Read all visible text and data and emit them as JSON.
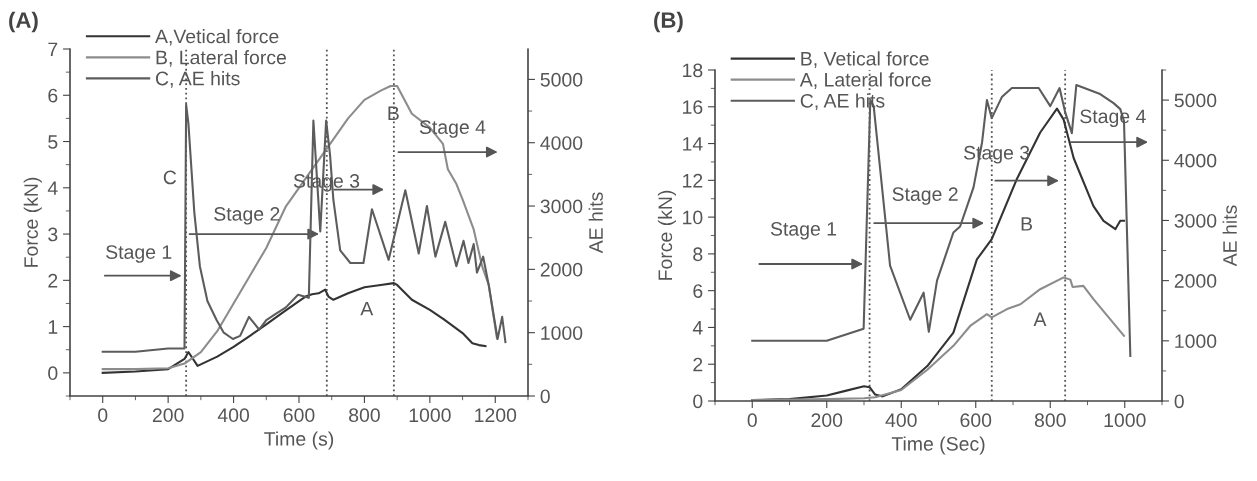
{
  "chart_data": [
    {
      "type": "line",
      "title": "(A)",
      "xlabel": "Time (s)",
      "ylabel": "Force (kN)",
      "y2label": "AE hits",
      "xlim": [
        -100,
        1300
      ],
      "xticks": [
        0,
        200,
        400,
        600,
        800,
        1000,
        1200
      ],
      "ylim": [
        -0.5,
        7
      ],
      "yticks": [
        0,
        1,
        2,
        3,
        4,
        5,
        6,
        7
      ],
      "y2lim": [
        0,
        5480
      ],
      "y2ticks": [
        0,
        1000,
        2000,
        3000,
        4000,
        5000
      ],
      "legend": "top left",
      "grid": false,
      "marker": "none",
      "line_style": "solid",
      "series": [
        {
          "name": "A,Vetical force",
          "color": "#333333",
          "x": [
            0,
            100,
            200,
            250,
            262,
            290,
            350,
            400,
            450,
            500,
            550,
            600,
            620,
            640,
            660,
            680,
            690,
            705,
            750,
            800,
            850,
            890,
            900,
            945,
            1000,
            1044,
            1100,
            1130,
            1150,
            1170
          ],
          "values": [
            0,
            0.03,
            0.08,
            0.3,
            0.45,
            0.15,
            0.35,
            0.56,
            0.8,
            1.05,
            1.3,
            1.55,
            1.65,
            1.7,
            1.72,
            1.8,
            1.65,
            1.58,
            1.72,
            1.85,
            1.9,
            1.94,
            1.9,
            1.58,
            1.36,
            1.15,
            0.86,
            0.64,
            0.6,
            0.58
          ]
        },
        {
          "name": "B, Lateral force",
          "color": "#8c8c8c",
          "x": [
            0,
            100,
            200,
            250,
            300,
            350,
            400,
            450,
            500,
            560,
            600,
            630,
            660,
            680,
            700,
            750,
            800,
            850,
            880,
            900,
            945,
            1000,
            1040,
            1055,
            1080,
            1100,
            1134,
            1160,
            1180,
            1205
          ],
          "values": [
            0.08,
            0.08,
            0.1,
            0.2,
            0.45,
            0.9,
            1.5,
            2.1,
            2.7,
            3.6,
            4.0,
            4.3,
            4.6,
            4.8,
            5.0,
            5.5,
            5.9,
            6.1,
            6.2,
            6.2,
            5.6,
            5.3,
            4.95,
            4.4,
            4.1,
            3.75,
            3.1,
            2.3,
            1.9,
            0.75
          ]
        },
        {
          "name": "C, AE hits",
          "color": "#5c5c5c",
          "axis": "y2",
          "x": [
            0,
            100,
            200,
            250,
            255,
            262,
            280,
            297,
            320,
            348,
            370,
            398,
            420,
            447,
            478,
            500,
            530,
            560,
            597,
            630,
            644,
            665,
            683,
            695,
            705,
            726,
            757,
            797,
            823,
            874,
            925,
            966,
            991,
            1017,
            1047,
            1081,
            1103,
            1118,
            1134,
            1144,
            1163,
            1180,
            1207,
            1221,
            1231
          ],
          "values": [
            700,
            700,
            750,
            750,
            4600,
            4300,
            2900,
            2050,
            1500,
            1200,
            1000,
            900,
            950,
            1250,
            1050,
            1200,
            1300,
            1400,
            1600,
            1550,
            4350,
            2600,
            4350,
            3800,
            3100,
            2300,
            2100,
            2100,
            2950,
            2150,
            3250,
            2250,
            3000,
            2200,
            2750,
            2050,
            2450,
            2100,
            2400,
            1950,
            2200,
            1750,
            900,
            1250,
            850
          ]
        }
      ],
      "ref_lines": [
        {
          "axis": "x",
          "value": 255,
          "line_style": "dotted",
          "color": "#555555"
        },
        {
          "axis": "x",
          "value": 685,
          "line_style": "dotted",
          "color": "#555555"
        },
        {
          "axis": "x",
          "value": 890,
          "line_style": "dotted",
          "color": "#555555"
        }
      ],
      "annotations": [
        {
          "text": "Stage 1",
          "x": 250,
          "y": 2.1
        },
        {
          "text": "Stage 2",
          "x": 670,
          "y": 3.0
        },
        "Stage 3",
        "Stage 4",
        "A",
        "B",
        "C"
      ]
    },
    {
      "type": "line",
      "title": "(B)",
      "xlabel": "Time (Sec)",
      "ylabel": "Force (kN)",
      "y2label": "AE hits",
      "xlim": [
        -100,
        1100
      ],
      "xticks": [
        0,
        200,
        400,
        600,
        800,
        1000
      ],
      "ylim": [
        0,
        18
      ],
      "yticks": [
        0,
        2,
        4,
        6,
        8,
        10,
        12,
        14,
        16,
        18
      ],
      "y2lim": [
        0,
        5500
      ],
      "y2ticks": [
        0,
        1000,
        2000,
        3000,
        4000,
        5000
      ],
      "legend": "top left",
      "grid": false,
      "marker": "none",
      "line_style": "solid",
      "series": [
        {
          "name": "B, Vetical force",
          "color": "#333333",
          "x": [
            0,
            100,
            200,
            250,
            300,
            315,
            330,
            350,
            400,
            470,
            540,
            603,
            643,
            711,
            773,
            818,
            836,
            863,
            916,
            943,
            975,
            988,
            998
          ],
          "values": [
            0.05,
            0.1,
            0.3,
            0.55,
            0.8,
            0.75,
            0.35,
            0.25,
            0.64,
            1.9,
            3.72,
            7.7,
            8.8,
            12.1,
            14.6,
            15.9,
            15.3,
            13.2,
            10.6,
            9.8,
            9.35,
            9.8,
            9.8
          ]
        },
        {
          "name": "A, Lateral force",
          "color": "#8c8c8c",
          "x": [
            0,
            200,
            300,
            330,
            400,
            470,
            540,
            585,
            630,
            643,
            684,
            720,
            773,
            836,
            854,
            860,
            889,
            916,
            998
          ],
          "values": [
            0.05,
            0.1,
            0.15,
            0.2,
            0.6,
            1.7,
            3.0,
            4.08,
            4.72,
            4.55,
            5.0,
            5.26,
            6.08,
            6.72,
            6.6,
            6.2,
            6.26,
            5.54,
            3.54
          ]
        },
        {
          "name": "C, AE hits",
          "color": "#5c5c5c",
          "axis": "y2",
          "x": [
            0,
            200,
            299,
            317,
            326,
            370,
            424,
            460,
            474,
            496,
            540,
            558,
            594,
            617,
            630,
            643,
            670,
            697,
            769,
            800,
            825,
            840,
            858,
            870,
            934,
            970,
            988,
            998,
            1015
          ],
          "values": [
            1000,
            1000,
            1200,
            5000,
            4900,
            2250,
            1350,
            1800,
            1150,
            2000,
            2800,
            2900,
            3550,
            4300,
            5000,
            4700,
            5050,
            5200,
            5200,
            4900,
            5200,
            4800,
            4450,
            5250,
            5100,
            4950,
            4850,
            4650,
            750
          ]
        }
      ],
      "ref_lines": [
        {
          "axis": "x",
          "value": 315,
          "line_style": "dotted",
          "color": "#555555"
        },
        {
          "axis": "x",
          "value": 643,
          "line_style": "dotted",
          "color": "#555555"
        },
        {
          "axis": "x",
          "value": 840,
          "line_style": "dotted",
          "color": "#555555"
        }
      ],
      "annotations": [
        {
          "text": "Stage 1",
          "x": 305,
          "y": 7.45
        },
        {
          "text": "Stage 2",
          "x": 630,
          "y": 9.67
        },
        {
          "text": "Stage 3",
          "x": 831,
          "y": 11.98
        },
        "Stage 4",
        "B",
        "A"
      ]
    }
  ]
}
